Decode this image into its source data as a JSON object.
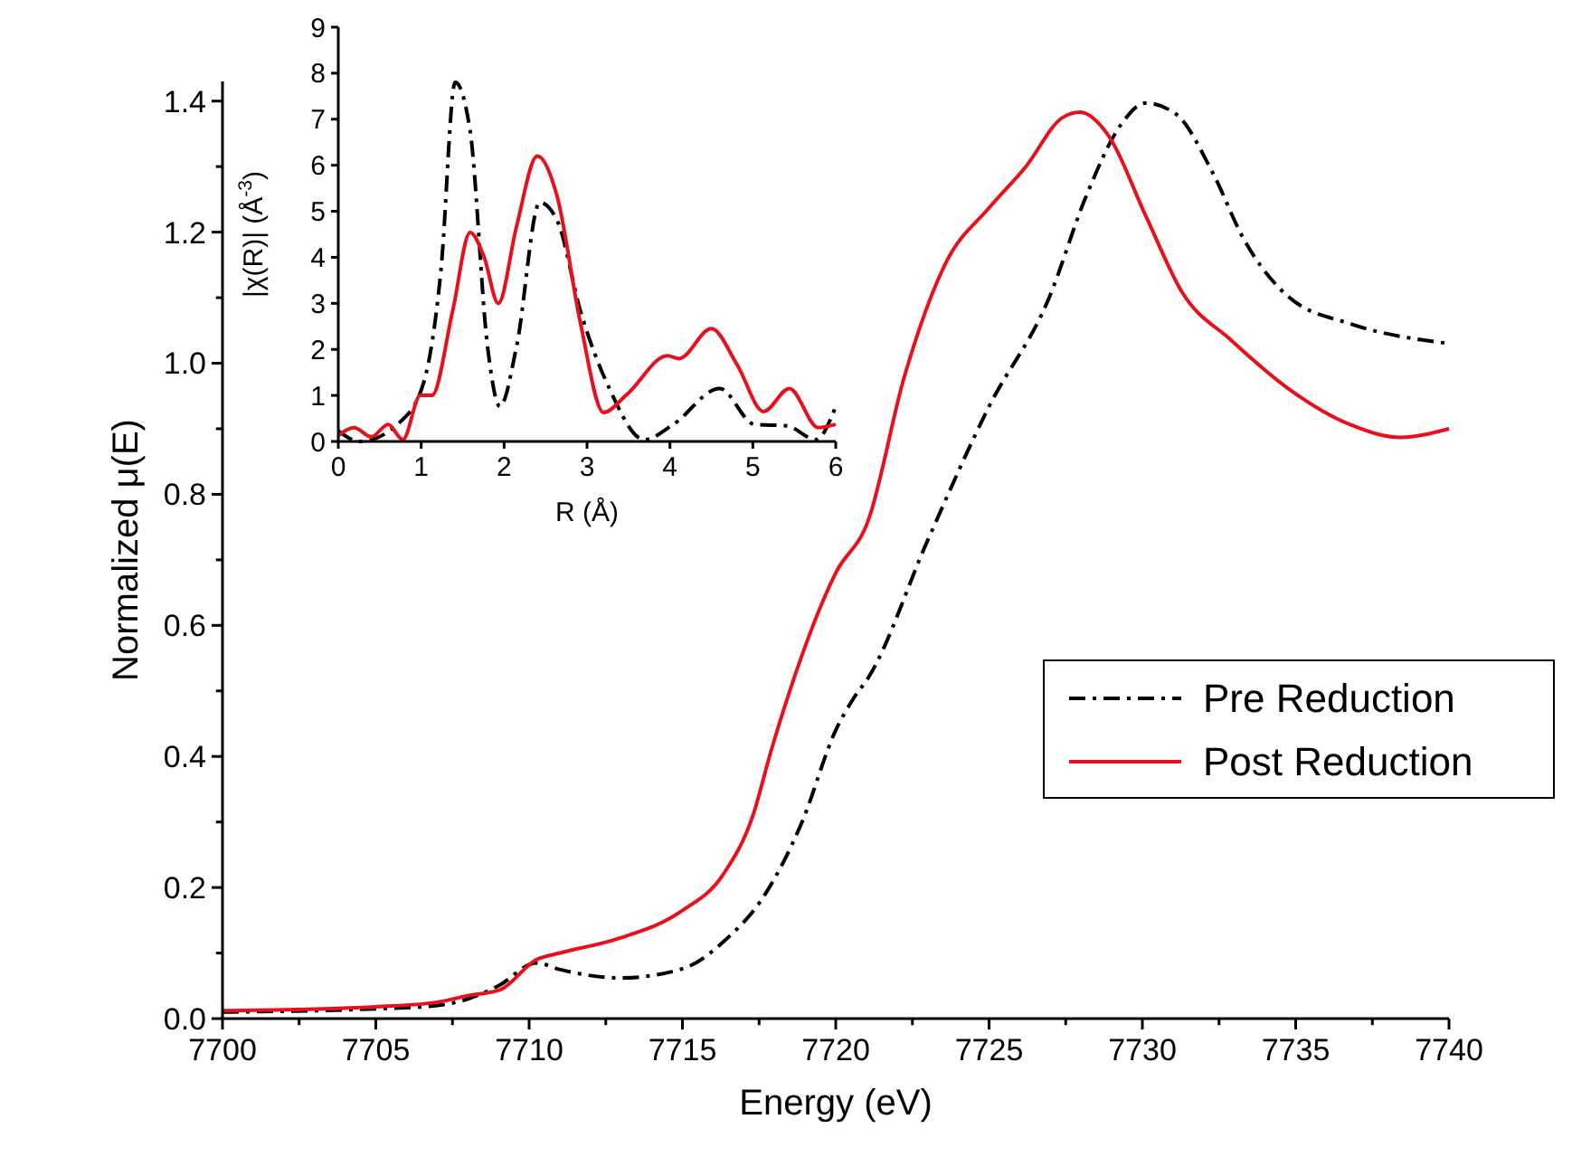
{
  "chart_data": [
    {
      "type": "line",
      "xlabel": "Energy (eV)",
      "ylabel": "Normalized μ(E)",
      "xlim": [
        7700,
        7740
      ],
      "ylim": [
        0,
        1.43
      ],
      "xticks": [
        7700,
        {
          "value": 7702.5,
          "label": null
        },
        7705,
        {
          "value": 7707.5,
          "label": null
        },
        7710,
        {
          "value": 7712.5,
          "label": null
        },
        7715,
        {
          "value": 7717.5,
          "label": null
        },
        7720,
        {
          "value": 7722.5,
          "label": null
        },
        7725,
        {
          "value": 7727.5,
          "label": null
        },
        7730,
        {
          "value": 7732.5,
          "label": null
        },
        7735,
        {
          "value": 7737.5,
          "label": null
        },
        7740
      ],
      "yticks": [
        {
          "value": 0,
          "label": "0.0"
        },
        {
          "value": 0.1,
          "label": null
        },
        0.2,
        {
          "value": 0.3,
          "label": null
        },
        0.4,
        {
          "value": 0.5,
          "label": null
        },
        0.6,
        {
          "value": 0.7,
          "label": null
        },
        0.8,
        {
          "value": 0.9,
          "label": null
        },
        {
          "value": 1,
          "label": "1.0"
        },
        {
          "value": 1.1,
          "label": null
        },
        1.2,
        {
          "value": 1.3,
          "label": null
        },
        1.4
      ],
      "legend": "right",
      "grid": false,
      "series": [
        {
          "name": "Pre Reduction",
          "color": "#000000",
          "line_style": "dashed",
          "x": [
            7700,
            7705,
            7707,
            7708,
            7709,
            7710.24,
            7711,
            7712.97,
            7715,
            7716.33,
            7717.7,
            7718.9,
            7720,
            7720.6,
            7721.06,
            7723,
            7725,
            7726.96,
            7728.15,
            7729.3,
            7730.1,
            7731.1,
            7732.3,
            7733.3,
            7734.8,
            7736.8,
            7740
          ],
          "values": [
            0.01,
            0.015,
            0.02,
            0.03,
            0.05,
            0.085,
            0.075,
            0.062,
            0.076,
            0.117,
            0.19,
            0.3,
            0.44,
            0.49,
            0.52,
            0.73,
            0.934,
            1.1,
            1.253,
            1.364,
            1.397,
            1.38,
            1.29,
            1.19,
            1.1,
            1.06,
            1.03
          ]
        },
        {
          "name": "Post Reduction",
          "color": "#e8101a",
          "line_style": "solid",
          "x": [
            7700,
            7705,
            7707,
            7708,
            7709.06,
            7710.24,
            7711,
            7712.97,
            7714.97,
            7716.33,
            7717.3,
            7717.9,
            7718.5,
            7720,
            7721.06,
            7722.24,
            7723.6,
            7725,
            7726.2,
            7727.4,
            7727.97,
            7728.9,
            7730.1,
            7731.3,
            7732.9,
            7734.8,
            7736.8,
            7738.4,
            7740
          ],
          "values": [
            0.012,
            0.018,
            0.025,
            0.035,
            0.044,
            0.09,
            0.1,
            0.123,
            0.164,
            0.22,
            0.31,
            0.41,
            0.5,
            0.68,
            0.76,
            0.98,
            1.154,
            1.237,
            1.3,
            1.375,
            1.383,
            1.347,
            1.226,
            1.108,
            1.035,
            0.96,
            0.906,
            0.887,
            0.9
          ]
        }
      ]
    },
    {
      "type": "line",
      "xlabel": "R (Å)",
      "ylabel": "|χ(R)| (Å$^{-3}$)",
      "xlim": [
        0,
        6
      ],
      "ylim": [
        0,
        9
      ],
      "xticks": [
        0,
        1,
        2,
        3,
        4,
        5,
        6
      ],
      "yticks": [
        0,
        1,
        2,
        3,
        4,
        5,
        6,
        7,
        8,
        9
      ],
      "series": [
        {
          "color": "#000000",
          "line_style": "dashed",
          "x": [
            0,
            0.26,
            0.75,
            1.03,
            1.24,
            1.41,
            1.59,
            1.8,
            1.95,
            2.15,
            2.43,
            2.64,
            2.92,
            3.27,
            3.69,
            4.04,
            4.6,
            5.02,
            5.41,
            5.76,
            6
          ],
          "values": [
            0.23,
            0,
            0.43,
            1.28,
            3.75,
            7.8,
            6.75,
            2.06,
            0.76,
            2.06,
            5.19,
            4.8,
            2.84,
            1.15,
            0.04,
            0.37,
            1.15,
            0.37,
            0.34,
            0.04,
            0.76
          ]
        },
        {
          "color": "#e8101a",
          "line_style": "solid",
          "x": [
            0,
            0.19,
            0.4,
            0.6,
            0.78,
            0.99,
            1.13,
            1.38,
            1.59,
            1.76,
            1.93,
            2.15,
            2.4,
            2.64,
            2.92,
            3.2,
            3.48,
            3.97,
            4.11,
            4.5,
            4.81,
            5.13,
            5.44,
            5.79,
            6
          ],
          "values": [
            0.13,
            0.3,
            0.1,
            0.37,
            0.04,
            1,
            1,
            2.84,
            4.54,
            4,
            3,
            4.67,
            6.2,
            5.32,
            2.58,
            0.63,
            1.02,
            1.86,
            1.8,
            2.45,
            1.67,
            0.65,
            1.15,
            0.3,
            0.37
          ]
        }
      ]
    }
  ]
}
